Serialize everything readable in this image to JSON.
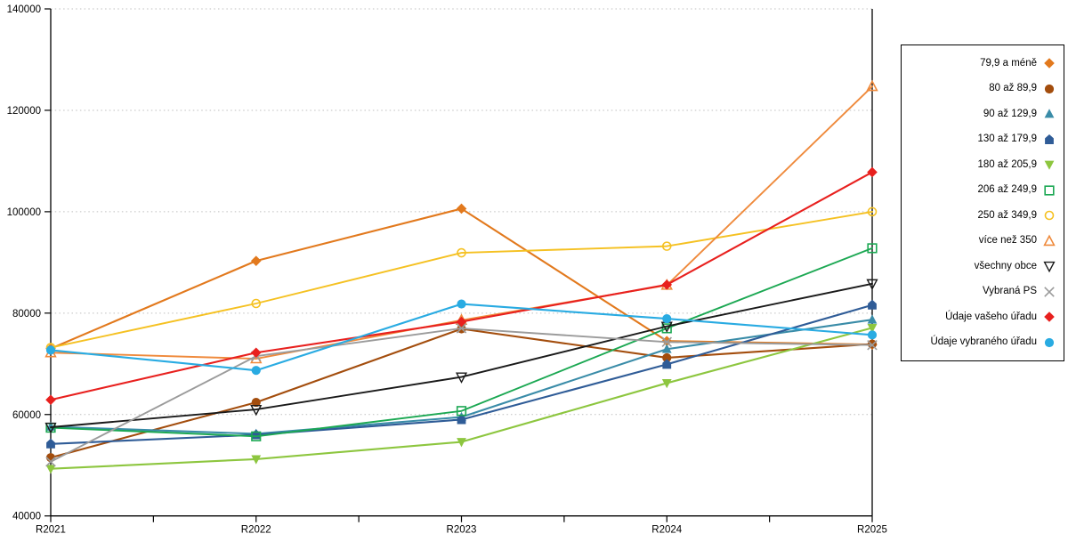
{
  "chart_data": {
    "type": "line",
    "title": "",
    "xlabel": "",
    "ylabel": "",
    "categories": [
      "R2021",
      "R2022",
      "R2023",
      "R2024",
      "R2025"
    ],
    "ylim": [
      40000,
      140000
    ],
    "y_ticks": [
      40000,
      60000,
      80000,
      100000,
      120000,
      140000
    ],
    "y_tick_labels": [
      "40000",
      "60000",
      "80000",
      "100000",
      "120000",
      "140000"
    ],
    "grid": "horizontal dotted gridlines at each 20000",
    "legend_position": "right outside, bordered box",
    "series": [
      {
        "name": "79,9 a méně",
        "marker": "diamond",
        "filled": true,
        "color": "#E2791D",
        "values": [
          73000,
          90300,
          100600,
          74500,
          73800
        ]
      },
      {
        "name": "80 až 89,9",
        "marker": "circle",
        "filled": true,
        "color": "#A34D0D",
        "values": [
          51500,
          62400,
          76900,
          71200,
          73900
        ]
      },
      {
        "name": "90 až 129,9",
        "marker": "triangle-up",
        "filled": true,
        "color": "#3A8CA8",
        "values": [
          57600,
          56200,
          59500,
          72900,
          78700
        ]
      },
      {
        "name": "130 až 179,9",
        "marker": "pentagon",
        "filled": true,
        "color": "#2F5C97",
        "values": [
          54200,
          56000,
          59000,
          69900,
          81600
        ]
      },
      {
        "name": "180 až 205,9",
        "marker": "triangle-down",
        "filled": true,
        "color": "#8DC63F",
        "values": [
          49300,
          51200,
          54600,
          66200,
          77100
        ]
      },
      {
        "name": "206 až 249,9",
        "marker": "square",
        "filled": false,
        "color": "#1CA853",
        "values": [
          57400,
          55700,
          60700,
          77000,
          92800
        ]
      },
      {
        "name": "250 až 349,9",
        "marker": "circle",
        "filled": false,
        "color": "#F5C122",
        "values": [
          73200,
          81900,
          91900,
          93200,
          100000
        ]
      },
      {
        "name": "více než 350",
        "marker": "triangle-up",
        "filled": false,
        "color": "#EF8A3C",
        "values": [
          72200,
          71000,
          78600,
          85500,
          124700
        ]
      },
      {
        "name": "všechny obce",
        "marker": "triangle-down",
        "filled": false,
        "color": "#1A1A1A",
        "values": [
          57500,
          61000,
          67400,
          77400,
          85800
        ]
      },
      {
        "name": "Vybraná PS",
        "marker": "x",
        "filled": false,
        "color": "#9B9B9B",
        "values": [
          50700,
          71500,
          77000,
          74300,
          73700
        ]
      },
      {
        "name": "Údaje vašeho úřadu",
        "marker": "diamond",
        "filled": true,
        "color": "#E8201E",
        "values": [
          62900,
          72200,
          78300,
          85600,
          107800
        ]
      },
      {
        "name": "Údaje vybraného úřadu",
        "marker": "circle",
        "filled": true,
        "color": "#29ABE2",
        "values": [
          72700,
          68700,
          81800,
          78900,
          75700
        ]
      }
    ],
    "colors": {
      "background": "#ffffff",
      "axis": "#000000",
      "grid": "#BFBFBF",
      "legend_border": "#000000",
      "tick_label": "#000000"
    }
  }
}
